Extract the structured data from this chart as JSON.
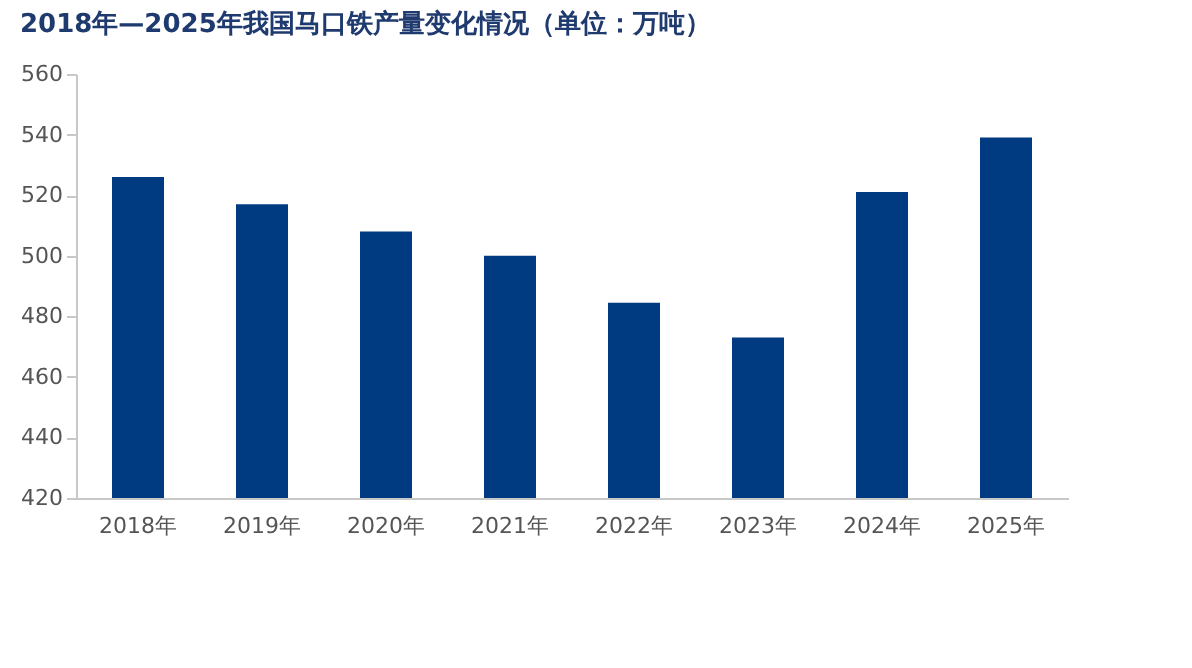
{
  "chart_data": {
    "type": "bar",
    "title": "2018年—2025年我国马口铁产量变化情况（单位：万吨）",
    "categories": [
      "2018年",
      "2019年",
      "2020年",
      "2021年",
      "2022年",
      "2023年",
      "2024年",
      "2025年"
    ],
    "values": [
      526,
      517,
      508,
      500,
      484.5,
      473,
      521,
      539
    ],
    "color": "#003a80",
    "ylim": [
      420,
      560
    ],
    "yticks": [
      420,
      440,
      460,
      480,
      500,
      520,
      540,
      560
    ],
    "grid": false
  }
}
